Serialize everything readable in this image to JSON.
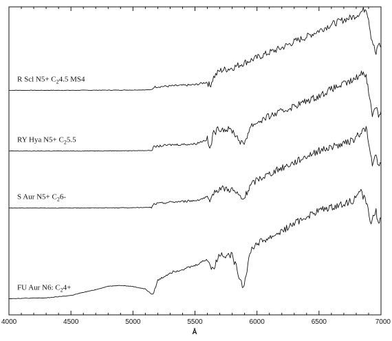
{
  "chart_data": {
    "type": "line",
    "title": "",
    "xlabel": "Å",
    "ylabel": "",
    "xlim": [
      4000,
      7000
    ],
    "ylim": [
      0,
      100
    ],
    "grid": false,
    "legend": "none",
    "x_ticks": [
      "4000",
      "4500",
      "5000",
      "5500",
      "6000",
      "6500",
      "7000"
    ],
    "x_tick_values": [
      4000,
      4500,
      5000,
      5500,
      6000,
      6500,
      7000
    ],
    "series": [
      {
        "name": "R Scl  N5+  C24.5  MS4",
        "label_parts": [
          {
            "text": "R Scl   N5+  C",
            "sub": false
          },
          {
            "text": "2",
            "sub": true
          },
          {
            "text": "4.5  MS4",
            "sub": false
          }
        ],
        "points": [
          [
            4000,
            72.9
          ],
          [
            4500,
            72.9
          ],
          [
            5000,
            73.0
          ],
          [
            5150,
            73.1
          ],
          [
            5170,
            74.0
          ],
          [
            5300,
            74.3
          ],
          [
            5500,
            74.7
          ],
          [
            5600,
            75.6
          ],
          [
            5620,
            74.3
          ],
          [
            5650,
            77.2
          ],
          [
            5700,
            79.3
          ],
          [
            5800,
            80.2
          ],
          [
            5900,
            81.9
          ],
          [
            6000,
            83.5
          ],
          [
            6100,
            85.2
          ],
          [
            6200,
            86.7
          ],
          [
            6300,
            88.7
          ],
          [
            6400,
            90.3
          ],
          [
            6500,
            92.3
          ],
          [
            6600,
            94.3
          ],
          [
            6700,
            95.8
          ],
          [
            6780,
            96.8
          ],
          [
            6850,
            98.6
          ],
          [
            6880,
            99.7
          ],
          [
            6900,
            96.2
          ],
          [
            6920,
            90.5
          ],
          [
            6960,
            84.5
          ],
          [
            6980,
            88.1
          ],
          [
            7000,
            86.9
          ]
        ]
      },
      {
        "name": "RY Hya  N5+  C25.5",
        "label_parts": [
          {
            "text": "RY Hya   N5+  C",
            "sub": false
          },
          {
            "text": "2",
            "sub": true
          },
          {
            "text": "5.5",
            "sub": false
          }
        ],
        "points": [
          [
            4000,
            53.2
          ],
          [
            4500,
            53.2
          ],
          [
            5000,
            53.3
          ],
          [
            5150,
            53.4
          ],
          [
            5170,
            54.6
          ],
          [
            5300,
            55.2
          ],
          [
            5500,
            55.5
          ],
          [
            5600,
            57.0
          ],
          [
            5620,
            53.6
          ],
          [
            5650,
            59.1
          ],
          [
            5700,
            60.6
          ],
          [
            5800,
            59.9
          ],
          [
            5890,
            55.0
          ],
          [
            5950,
            61.4
          ],
          [
            6000,
            62.5
          ],
          [
            6100,
            64.5
          ],
          [
            6200,
            66.0
          ],
          [
            6300,
            67.8
          ],
          [
            6400,
            69.4
          ],
          [
            6500,
            71.1
          ],
          [
            6600,
            73.3
          ],
          [
            6700,
            74.9
          ],
          [
            6780,
            76.2
          ],
          [
            6850,
            78.7
          ],
          [
            6880,
            78.0
          ],
          [
            6900,
            72.3
          ],
          [
            6930,
            65.1
          ],
          [
            6960,
            68.1
          ],
          [
            6980,
            64.7
          ],
          [
            7000,
            66.0
          ]
        ]
      },
      {
        "name": "S Aur  N5+  C26-",
        "label_parts": [
          {
            "text": "S Aur   N5+  C",
            "sub": false
          },
          {
            "text": "2",
            "sub": true
          },
          {
            "text": "6-",
            "sub": false
          }
        ],
        "points": [
          [
            4000,
            34.7
          ],
          [
            4500,
            34.7
          ],
          [
            5000,
            34.8
          ],
          [
            5150,
            34.9
          ],
          [
            5170,
            36.0
          ],
          [
            5300,
            36.6
          ],
          [
            5500,
            37.1
          ],
          [
            5600,
            38.2
          ],
          [
            5620,
            35.6
          ],
          [
            5650,
            39.8
          ],
          [
            5700,
            41.2
          ],
          [
            5800,
            40.7
          ],
          [
            5890,
            37.3
          ],
          [
            5950,
            42.1
          ],
          [
            6000,
            43.9
          ],
          [
            6100,
            45.8
          ],
          [
            6200,
            47.7
          ],
          [
            6300,
            49.5
          ],
          [
            6400,
            51.6
          ],
          [
            6500,
            53.3
          ],
          [
            6600,
            54.5
          ],
          [
            6700,
            55.5
          ],
          [
            6780,
            56.8
          ],
          [
            6850,
            59.8
          ],
          [
            6880,
            60.7
          ],
          [
            6900,
            55.4
          ],
          [
            6930,
            49.0
          ],
          [
            6960,
            51.4
          ],
          [
            6980,
            48.0
          ],
          [
            7000,
            49.2
          ]
        ]
      },
      {
        "name": "FU Aur  N6:  C24+",
        "label_parts": [
          {
            "text": "FU Aur   N6:  C",
            "sub": false
          },
          {
            "text": "2",
            "sub": true
          },
          {
            "text": "4+",
            "sub": false
          }
        ],
        "points": [
          [
            4000,
            5.3
          ],
          [
            4300,
            5.5
          ],
          [
            4500,
            6.3
          ],
          [
            4600,
            7.3
          ],
          [
            4700,
            8.2
          ],
          [
            4800,
            9.3
          ],
          [
            4900,
            9.6
          ],
          [
            5000,
            9.2
          ],
          [
            5100,
            8.4
          ],
          [
            5160,
            6.4
          ],
          [
            5200,
            11.2
          ],
          [
            5300,
            13.7
          ],
          [
            5500,
            16.0
          ],
          [
            5600,
            18.2
          ],
          [
            5640,
            14.5
          ],
          [
            5700,
            19.8
          ],
          [
            5800,
            19.2
          ],
          [
            5890,
            8.9
          ],
          [
            5950,
            21.1
          ],
          [
            6000,
            23.2
          ],
          [
            6100,
            25.0
          ],
          [
            6200,
            27.2
          ],
          [
            6300,
            29.6
          ],
          [
            6400,
            31.9
          ],
          [
            6500,
            33.9
          ],
          [
            6600,
            34.9
          ],
          [
            6700,
            36.1
          ],
          [
            6780,
            37.2
          ],
          [
            6830,
            40.5
          ],
          [
            6880,
            36.7
          ],
          [
            6920,
            30.1
          ],
          [
            6960,
            33.5
          ],
          [
            6980,
            29.7
          ],
          [
            7000,
            31.2
          ]
        ]
      }
    ]
  }
}
